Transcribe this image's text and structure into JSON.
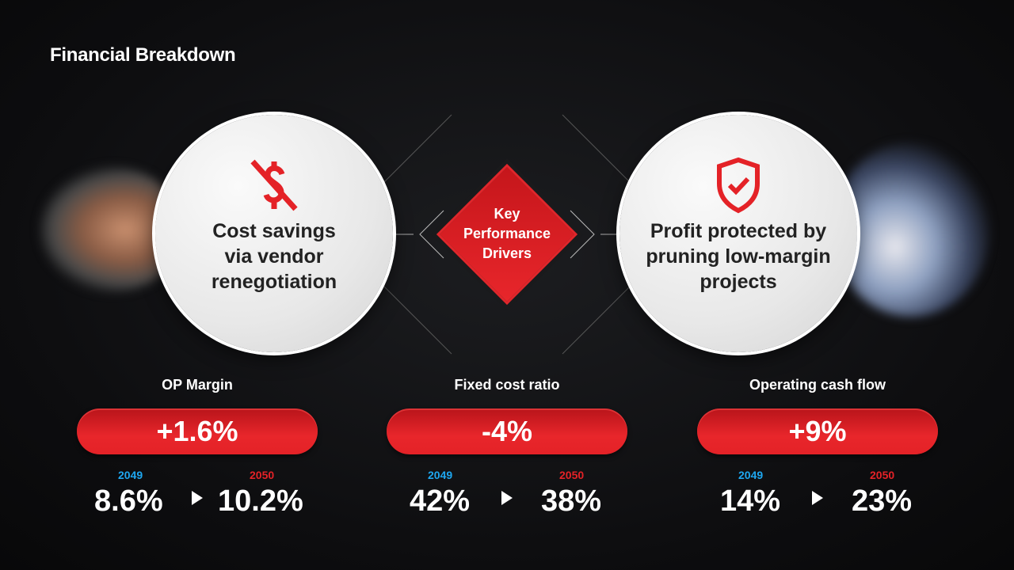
{
  "title": "Financial Breakdown",
  "left_card": {
    "icon": "no-dollar-icon",
    "text": "Cost savings via vendor renegotiation"
  },
  "right_card": {
    "icon": "shield-check-icon",
    "text": "Profit protected by pruning low-margin projects"
  },
  "center": {
    "line1": "Key",
    "line2": "Performance",
    "line3": "Drivers"
  },
  "colors": {
    "accent": "#e42227",
    "year_from": "#1ea7f0",
    "year_to": "#e42227"
  },
  "metrics": [
    {
      "label": "OP Margin",
      "change": "+1.6%",
      "from_year": "2049",
      "from_value": "8.6%",
      "to_year": "2050",
      "to_value": "10.2%"
    },
    {
      "label": "Fixed cost ratio",
      "change": "-4%",
      "from_year": "2049",
      "from_value": "42%",
      "to_year": "2050",
      "to_value": "38%"
    },
    {
      "label": "Operating cash flow",
      "change": "+9%",
      "from_year": "2049",
      "from_value": "14%",
      "to_year": "2050",
      "to_value": "23%"
    }
  ]
}
